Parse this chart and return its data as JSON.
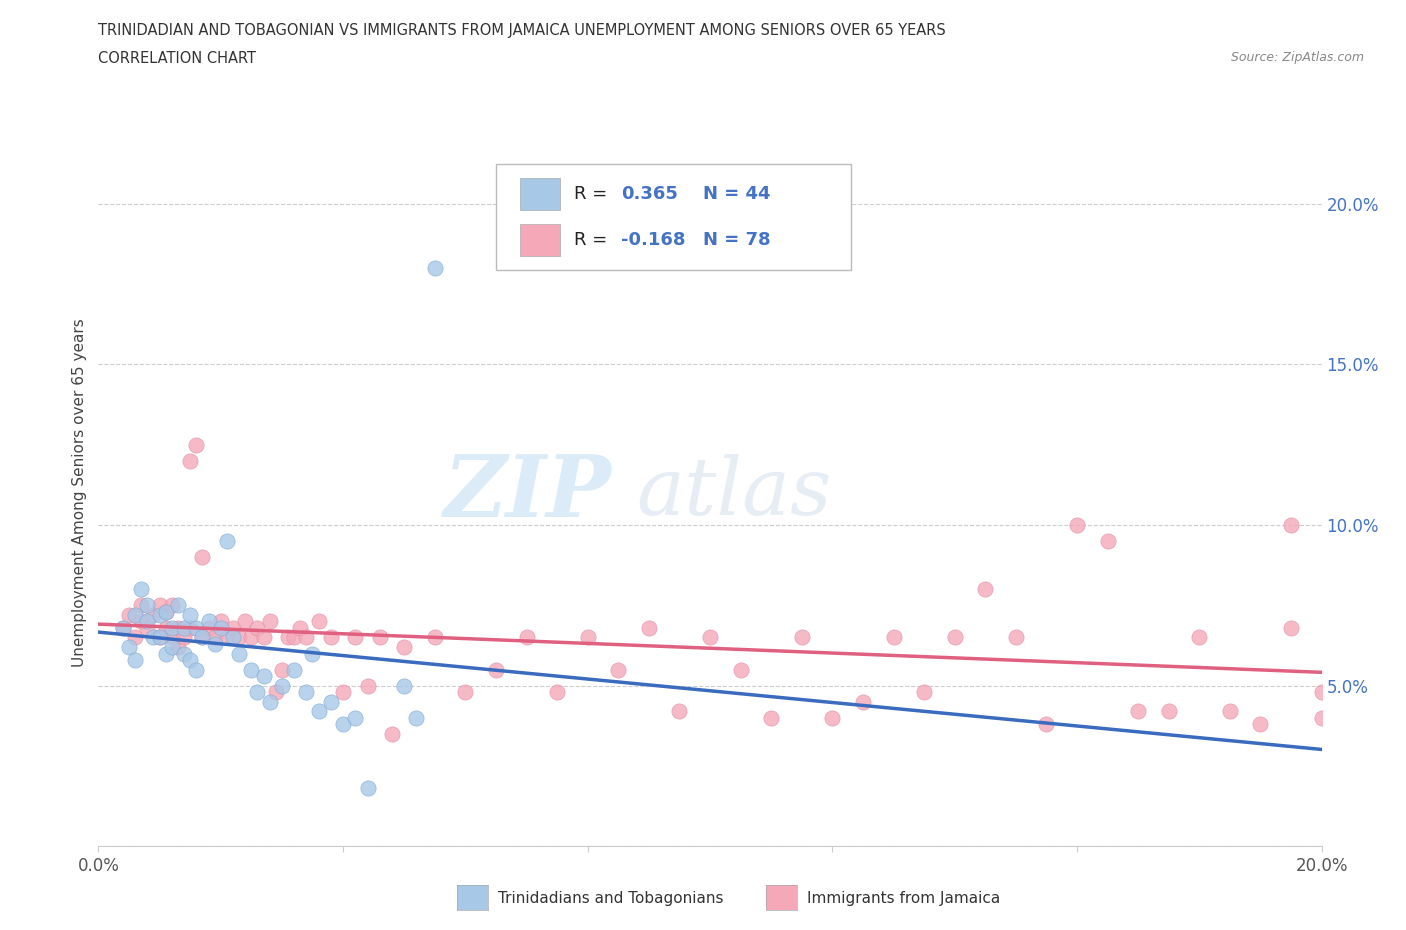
{
  "title_line1": "TRINIDADIAN AND TOBAGONIAN VS IMMIGRANTS FROM JAMAICA UNEMPLOYMENT AMONG SENIORS OVER 65 YEARS",
  "title_line2": "CORRELATION CHART",
  "source_text": "Source: ZipAtlas.com",
  "ylabel": "Unemployment Among Seniors over 65 years",
  "xlim": [
    0.0,
    0.2
  ],
  "ylim": [
    0.0,
    0.22
  ],
  "xticks": [
    0.0,
    0.04,
    0.08,
    0.12,
    0.16,
    0.2
  ],
  "yticks": [
    0.0,
    0.05,
    0.1,
    0.15,
    0.2
  ],
  "background_color": "#ffffff",
  "watermark_text1": "ZIP",
  "watermark_text2": "atlas",
  "color_blue": "#a8c8e8",
  "color_pink": "#f4a8b8",
  "trendline_blue": "#3a6bbf",
  "trendline_pink": "#e06080",
  "trendline_dashed": "#a8c8e8",
  "label_blue": "Trinidadians and Tobagonians",
  "label_pink": "Immigrants from Jamaica",
  "legend_color": "#4472c4",
  "blue_points": [
    [
      0.004,
      0.068
    ],
    [
      0.005,
      0.062
    ],
    [
      0.006,
      0.072
    ],
    [
      0.006,
      0.058
    ],
    [
      0.007,
      0.08
    ],
    [
      0.008,
      0.075
    ],
    [
      0.008,
      0.07
    ],
    [
      0.009,
      0.065
    ],
    [
      0.01,
      0.072
    ],
    [
      0.01,
      0.065
    ],
    [
      0.011,
      0.06
    ],
    [
      0.011,
      0.073
    ],
    [
      0.012,
      0.068
    ],
    [
      0.012,
      0.062
    ],
    [
      0.013,
      0.075
    ],
    [
      0.014,
      0.068
    ],
    [
      0.014,
      0.06
    ],
    [
      0.015,
      0.072
    ],
    [
      0.015,
      0.058
    ],
    [
      0.016,
      0.068
    ],
    [
      0.016,
      0.055
    ],
    [
      0.017,
      0.065
    ],
    [
      0.018,
      0.07
    ],
    [
      0.019,
      0.063
    ],
    [
      0.02,
      0.068
    ],
    [
      0.021,
      0.095
    ],
    [
      0.022,
      0.065
    ],
    [
      0.023,
      0.06
    ],
    [
      0.025,
      0.055
    ],
    [
      0.026,
      0.048
    ],
    [
      0.027,
      0.053
    ],
    [
      0.028,
      0.045
    ],
    [
      0.03,
      0.05
    ],
    [
      0.032,
      0.055
    ],
    [
      0.034,
      0.048
    ],
    [
      0.035,
      0.06
    ],
    [
      0.036,
      0.042
    ],
    [
      0.038,
      0.045
    ],
    [
      0.04,
      0.038
    ],
    [
      0.042,
      0.04
    ],
    [
      0.044,
      0.018
    ],
    [
      0.05,
      0.05
    ],
    [
      0.052,
      0.04
    ],
    [
      0.055,
      0.18
    ]
  ],
  "pink_points": [
    [
      0.004,
      0.068
    ],
    [
      0.005,
      0.072
    ],
    [
      0.006,
      0.065
    ],
    [
      0.007,
      0.07
    ],
    [
      0.007,
      0.075
    ],
    [
      0.008,
      0.068
    ],
    [
      0.009,
      0.072
    ],
    [
      0.01,
      0.065
    ],
    [
      0.01,
      0.075
    ],
    [
      0.011,
      0.068
    ],
    [
      0.011,
      0.073
    ],
    [
      0.012,
      0.065
    ],
    [
      0.012,
      0.075
    ],
    [
      0.013,
      0.068
    ],
    [
      0.013,
      0.062
    ],
    [
      0.014,
      0.065
    ],
    [
      0.015,
      0.068
    ],
    [
      0.015,
      0.12
    ],
    [
      0.016,
      0.125
    ],
    [
      0.017,
      0.065
    ],
    [
      0.017,
      0.09
    ],
    [
      0.018,
      0.068
    ],
    [
      0.019,
      0.065
    ],
    [
      0.02,
      0.07
    ],
    [
      0.021,
      0.065
    ],
    [
      0.022,
      0.068
    ],
    [
      0.023,
      0.065
    ],
    [
      0.024,
      0.07
    ],
    [
      0.025,
      0.065
    ],
    [
      0.026,
      0.068
    ],
    [
      0.027,
      0.065
    ],
    [
      0.028,
      0.07
    ],
    [
      0.029,
      0.048
    ],
    [
      0.03,
      0.055
    ],
    [
      0.031,
      0.065
    ],
    [
      0.032,
      0.065
    ],
    [
      0.033,
      0.068
    ],
    [
      0.034,
      0.065
    ],
    [
      0.036,
      0.07
    ],
    [
      0.038,
      0.065
    ],
    [
      0.04,
      0.048
    ],
    [
      0.042,
      0.065
    ],
    [
      0.044,
      0.05
    ],
    [
      0.046,
      0.065
    ],
    [
      0.048,
      0.035
    ],
    [
      0.05,
      0.062
    ],
    [
      0.055,
      0.065
    ],
    [
      0.06,
      0.048
    ],
    [
      0.065,
      0.055
    ],
    [
      0.07,
      0.065
    ],
    [
      0.075,
      0.048
    ],
    [
      0.08,
      0.065
    ],
    [
      0.085,
      0.055
    ],
    [
      0.09,
      0.068
    ],
    [
      0.095,
      0.042
    ],
    [
      0.1,
      0.065
    ],
    [
      0.105,
      0.055
    ],
    [
      0.11,
      0.04
    ],
    [
      0.115,
      0.065
    ],
    [
      0.12,
      0.04
    ],
    [
      0.125,
      0.045
    ],
    [
      0.13,
      0.065
    ],
    [
      0.135,
      0.048
    ],
    [
      0.14,
      0.065
    ],
    [
      0.145,
      0.08
    ],
    [
      0.15,
      0.065
    ],
    [
      0.155,
      0.038
    ],
    [
      0.16,
      0.1
    ],
    [
      0.165,
      0.095
    ],
    [
      0.17,
      0.042
    ],
    [
      0.175,
      0.042
    ],
    [
      0.18,
      0.065
    ],
    [
      0.185,
      0.042
    ],
    [
      0.19,
      0.038
    ],
    [
      0.195,
      0.1
    ],
    [
      0.2,
      0.04
    ],
    [
      0.2,
      0.048
    ],
    [
      0.195,
      0.068
    ]
  ]
}
